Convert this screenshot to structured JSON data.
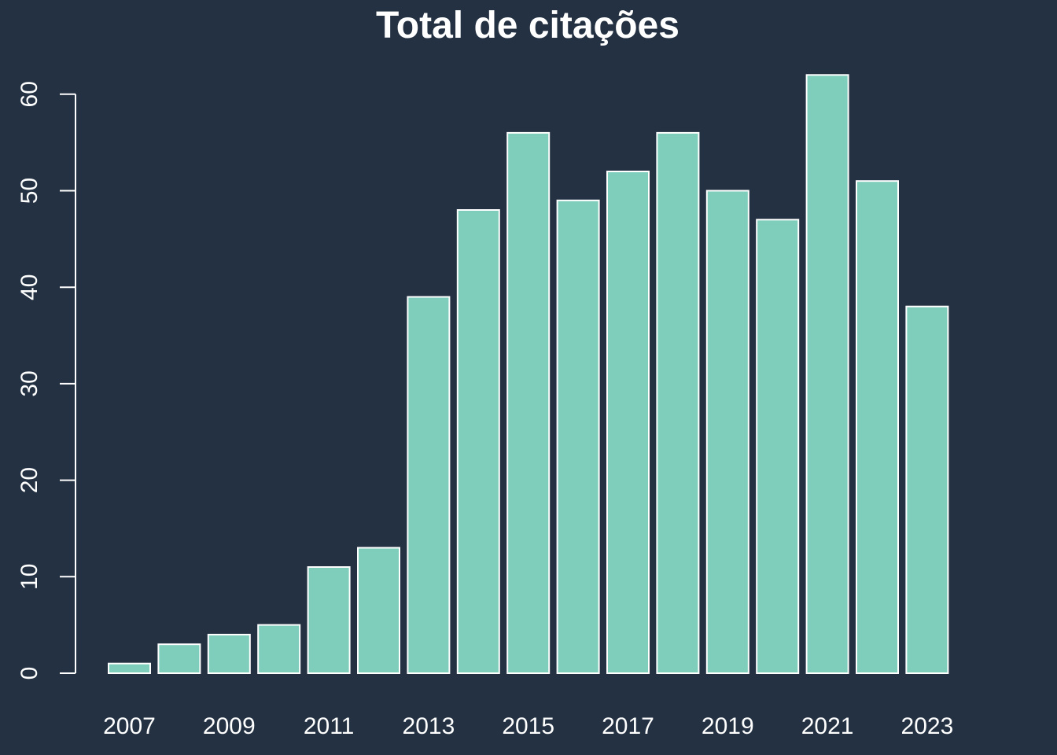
{
  "colors": {
    "background": "#233142",
    "bar_fill": "#7fcdbb",
    "bar_stroke": "#ffffff",
    "axis": "#ffffff",
    "text": "#ffffff"
  },
  "chart_data": {
    "type": "bar",
    "title": "Total de citações",
    "xlabel": "",
    "ylabel": "",
    "categories": [
      "2007",
      "2008",
      "2009",
      "2010",
      "2011",
      "2012",
      "2013",
      "2014",
      "2015",
      "2016",
      "2017",
      "2018",
      "2019",
      "2020",
      "2021",
      "2022",
      "2023"
    ],
    "values": [
      1,
      3,
      4,
      5,
      11,
      13,
      39,
      48,
      56,
      49,
      52,
      56,
      50,
      47,
      62,
      51,
      38
    ],
    "x_tick_labels": [
      "2007",
      "2009",
      "2011",
      "2013",
      "2015",
      "2017",
      "2019",
      "2021",
      "2023"
    ],
    "y_ticks": [
      0,
      10,
      20,
      30,
      40,
      50,
      60
    ],
    "y_tick_labels": [
      "0",
      "10",
      "20",
      "30",
      "40",
      "50",
      "60"
    ],
    "ylim": [
      0,
      62
    ],
    "grid": false,
    "legend": "none"
  }
}
